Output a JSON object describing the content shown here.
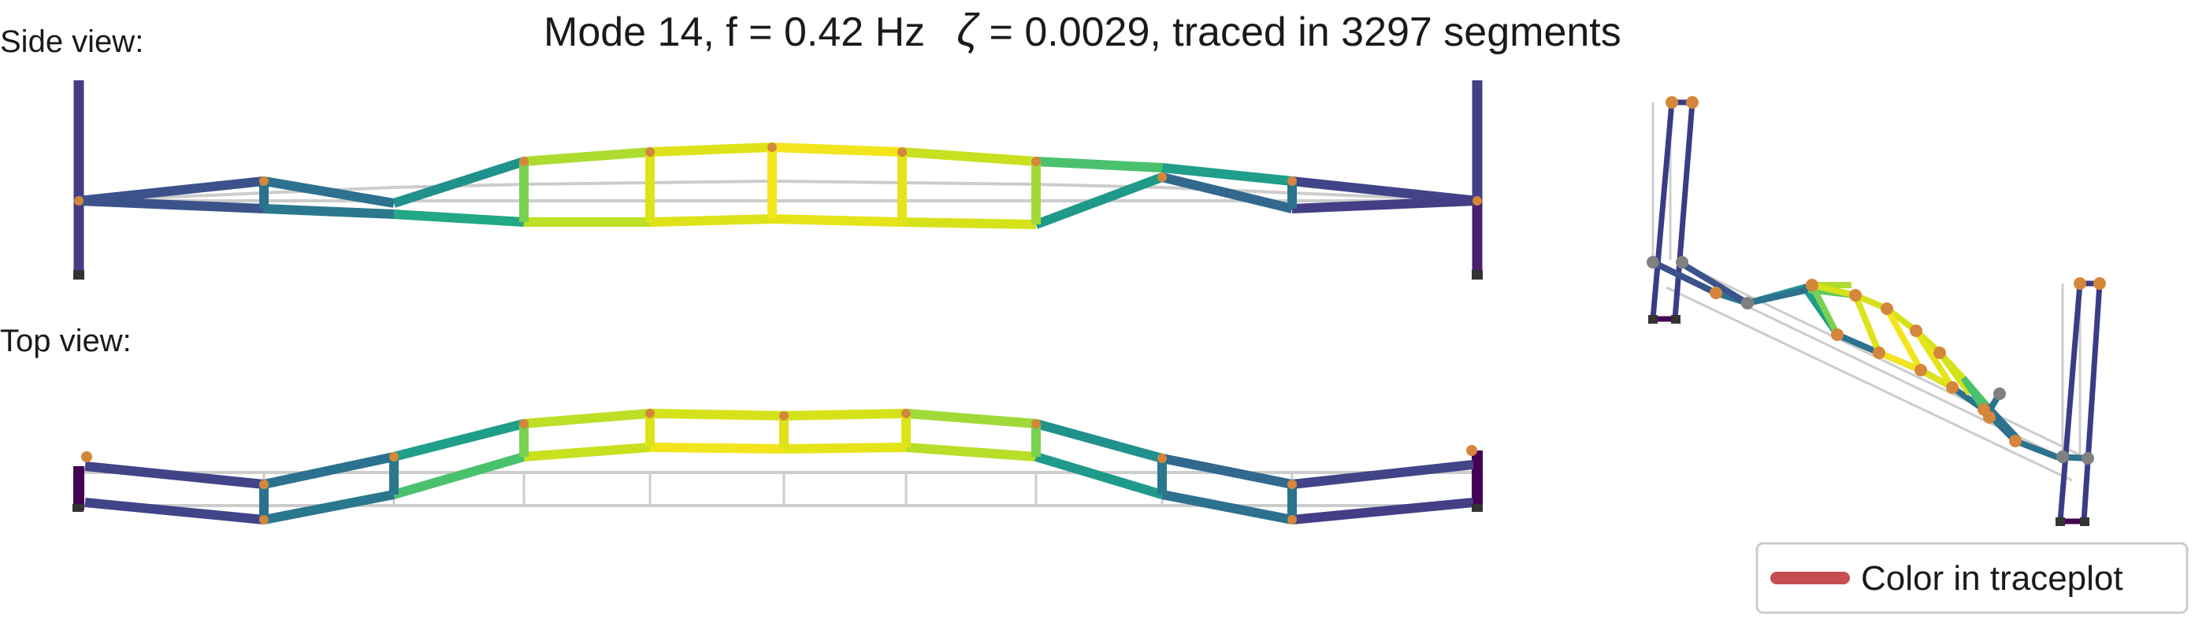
{
  "title": {
    "mode_text": "Mode 14, f = 0.42 Hz",
    "zeta_symbol": "ζ",
    "zeta_text": " = 0.0029,  traced in 3297 segments"
  },
  "side_view_label": "Side view:",
  "top_view_label": "Top view:",
  "legend": {
    "label": "Color in traceplot",
    "swatch_color": "#c44e52"
  },
  "colors": {
    "undeformed": "#cccccc",
    "joint_orange": "#d4873a",
    "joint_gray": "#808080",
    "support": "#333333",
    "colormap": "viridis"
  }
}
